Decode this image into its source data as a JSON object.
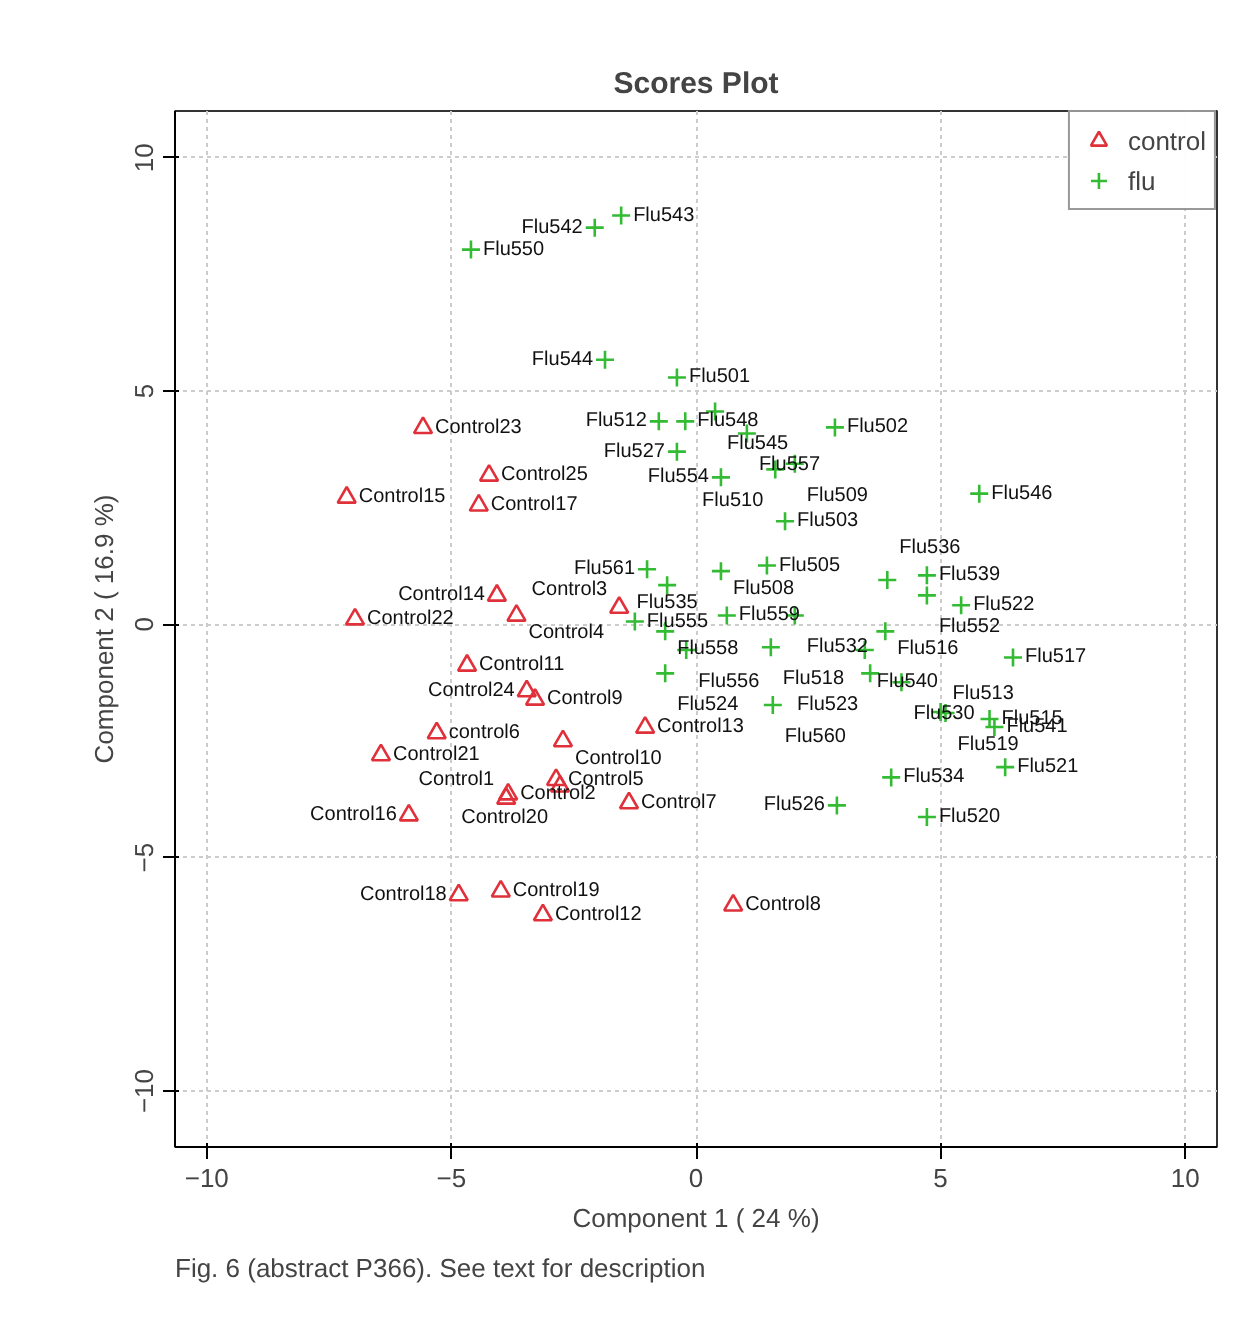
{
  "chart_data": {
    "type": "scatter",
    "title": "Scores Plot",
    "xlabel": "Component 1 ( 24 %)",
    "ylabel": "Component 2 ( 16.9 %)",
    "xlim": [
      -10.65,
      10.65
    ],
    "ylim": [
      -11.2,
      11
    ],
    "xticks": [
      -10,
      -5,
      0,
      5,
      10
    ],
    "yticks": [
      -10,
      -5,
      0,
      5,
      10
    ],
    "grid": true,
    "legend": "top right",
    "series": [
      {
        "name": "control",
        "color": "#e0303a",
        "marker": "triangle",
        "x": [
          -5.58,
          -4.23,
          -7.14,
          -4.44,
          -4.07,
          -6.97,
          -3.67,
          -1.57,
          -4.68,
          -3.46,
          -3.29,
          -5.3,
          -6.44,
          -2.72,
          -1.04,
          -5.87,
          -2.86,
          -2.78,
          -3.88,
          -3.84,
          -1.37,
          -3.99,
          -4.85,
          -3.13,
          0.76
        ],
        "values": [
          4.21,
          3.19,
          2.72,
          2.55,
          0.62,
          0.11,
          0.19,
          0.36,
          -0.88,
          -1.43,
          -1.61,
          -2.33,
          -2.8,
          -2.5,
          -2.21,
          -4.09,
          -3.33,
          -3.47,
          -3.73,
          -3.64,
          -3.83,
          -5.72,
          -5.8,
          -6.23,
          -6.02
        ]
      },
      {
        "name": "flu",
        "color": "#33bb33",
        "marker": "cross",
        "x": [
          -4.6,
          -2.07,
          -1.53,
          -1.86,
          -0.39,
          -0.76,
          -0.22,
          0.39,
          1.04,
          2.84,
          -0.39,
          0.51,
          2.02,
          1.62,
          5.79,
          1.82,
          1.45,
          -1.0,
          0.51,
          -0.59,
          3.91,
          4.72,
          4.72,
          5.42,
          0.63,
          2.02,
          -0.63,
          -1.25,
          3.87,
          -0.2,
          1.53,
          3.45,
          3.56,
          4.2,
          -0.63,
          6.48,
          1.57,
          5.0,
          5.1,
          6.0,
          6.1,
          3.99,
          6.32,
          2.88,
          4.72
        ],
        "values": [
          8.03,
          8.5,
          8.76,
          5.67,
          5.29,
          4.35,
          4.35,
          4.56,
          4.09,
          4.22,
          3.7,
          3.15,
          3.44,
          3.32,
          2.8,
          2.21,
          1.26,
          1.18,
          1.14,
          0.84,
          0.95,
          1.05,
          0.62,
          0.41,
          0.19,
          0.19,
          -0.15,
          0.06,
          -0.15,
          -0.55,
          -0.49,
          -0.55,
          -1.05,
          -1.24,
          -1.05,
          -0.71,
          -1.73,
          -1.88,
          -1.9,
          -2.03,
          -2.2,
          -3.28,
          -3.06,
          -3.88,
          -4.13
        ]
      }
    ],
    "annotations": [
      {
        "text": "Control23",
        "x": -5.58,
        "y": 4.21
      },
      {
        "text": "Control25",
        "x": -4.23,
        "y": 3.19
      },
      {
        "text": "Control15",
        "x": -7.14,
        "y": 2.72
      },
      {
        "text": "Control17",
        "x": -4.44,
        "y": 2.55
      },
      {
        "text": "Control14",
        "x": -4.07,
        "y": 0.62
      },
      {
        "text": "Control22",
        "x": -6.97,
        "y": 0.11
      },
      {
        "text": "Control4",
        "x": -3.67,
        "y": 0.19
      },
      {
        "text": "Control3",
        "x": -1.57,
        "y": 0.36
      },
      {
        "text": "Control11",
        "x": -4.68,
        "y": -0.88
      },
      {
        "text": "Control24",
        "x": -3.46,
        "y": -1.43
      },
      {
        "text": "Control9",
        "x": -3.29,
        "y": -1.61
      },
      {
        "text": "control6",
        "x": -5.3,
        "y": -2.33
      },
      {
        "text": "Control21",
        "x": -6.44,
        "y": -2.8
      },
      {
        "text": "Control10",
        "x": -2.72,
        "y": -2.5
      },
      {
        "text": "Control13",
        "x": -1.04,
        "y": -2.21
      },
      {
        "text": "Control16",
        "x": -5.87,
        "y": -4.09
      },
      {
        "text": "Control5",
        "x": -2.86,
        "y": -3.33
      },
      {
        "text": "Control20",
        "x": -2.78,
        "y": -3.47
      },
      {
        "text": "Control1",
        "x": -3.88,
        "y": -3.73
      },
      {
        "text": "Control2",
        "x": -3.84,
        "y": -3.64
      },
      {
        "text": "Control7",
        "x": -1.37,
        "y": -3.83
      },
      {
        "text": "Control19",
        "x": -3.99,
        "y": -5.72
      },
      {
        "text": "Control18",
        "x": -4.85,
        "y": -5.8
      },
      {
        "text": "Control12",
        "x": -3.13,
        "y": -6.23
      },
      {
        "text": "Control8",
        "x": 0.76,
        "y": -6.02
      },
      {
        "text": "Flu550",
        "x": -4.6,
        "y": 8.03
      },
      {
        "text": "Flu542",
        "x": -2.07,
        "y": 8.5
      },
      {
        "text": "Flu543",
        "x": -1.53,
        "y": 8.76
      },
      {
        "text": "Flu544",
        "x": -1.86,
        "y": 5.67
      },
      {
        "text": "Flu501",
        "x": -0.39,
        "y": 5.29
      },
      {
        "text": "Flu512",
        "x": -0.76,
        "y": 4.35
      },
      {
        "text": "Flu548",
        "x": -0.22,
        "y": 4.35
      },
      {
        "text": "Flu545",
        "x": 0.39,
        "y": 4.56
      },
      {
        "text": "Flu557",
        "x": 1.04,
        "y": 4.09
      },
      {
        "text": "Flu502",
        "x": 2.84,
        "y": 4.22
      },
      {
        "text": "Flu527",
        "x": -0.39,
        "y": 3.7
      },
      {
        "text": "Flu554",
        "x": 0.51,
        "y": 3.15
      },
      {
        "text": "Flu509",
        "x": 2.02,
        "y": 3.44
      },
      {
        "text": "Flu510",
        "x": 1.62,
        "y": 3.32
      },
      {
        "text": "Flu546",
        "x": 5.79,
        "y": 2.8
      },
      {
        "text": "Flu503",
        "x": 1.82,
        "y": 2.21
      },
      {
        "text": "Flu505",
        "x": 1.45,
        "y": 1.26
      },
      {
        "text": "Flu561",
        "x": -1.0,
        "y": 1.18
      },
      {
        "text": "Flu508",
        "x": 0.51,
        "y": 1.14
      },
      {
        "text": "Flu535",
        "x": -0.59,
        "y": 0.84
      },
      {
        "text": "Flu536",
        "x": 3.91,
        "y": 0.95
      },
      {
        "text": "Flu539",
        "x": 4.72,
        "y": 1.05
      },
      {
        "text": "Flu552",
        "x": 4.72,
        "y": 0.62
      },
      {
        "text": "Flu522",
        "x": 5.42,
        "y": 0.41
      },
      {
        "text": "Flu559",
        "x": 0.63,
        "y": 0.19
      },
      {
        "text": "Flu532",
        "x": 2.02,
        "y": 0.19
      },
      {
        "text": "Flu558",
        "x": -0.63,
        "y": -0.15
      },
      {
        "text": "Flu555",
        "x": -1.25,
        "y": 0.06
      },
      {
        "text": "Flu516",
        "x": 3.87,
        "y": -0.15
      },
      {
        "text": "Flu556",
        "x": -0.2,
        "y": -0.55
      },
      {
        "text": "Flu518",
        "x": 1.53,
        "y": -0.49
      },
      {
        "text": "Flu540",
        "x": 3.45,
        "y": -0.55
      },
      {
        "text": "Flu523",
        "x": 3.56,
        "y": -1.05
      },
      {
        "text": "Flu530",
        "x": 4.2,
        "y": -1.24
      },
      {
        "text": "Flu524",
        "x": -0.63,
        "y": -1.05
      },
      {
        "text": "Flu517",
        "x": 6.48,
        "y": -0.71
      },
      {
        "text": "Flu560",
        "x": 1.57,
        "y": -1.73
      },
      {
        "text": "Flu513",
        "x": 5.0,
        "y": -1.88
      },
      {
        "text": "Flu519",
        "x": 5.1,
        "y": -1.9
      },
      {
        "text": "Flu515",
        "x": 6.0,
        "y": -2.03
      },
      {
        "text": "Flu541",
        "x": 6.1,
        "y": -2.2
      },
      {
        "text": "Flu534",
        "x": 3.99,
        "y": -3.28
      },
      {
        "text": "Flu521",
        "x": 6.32,
        "y": -3.06
      },
      {
        "text": "Flu526",
        "x": 2.88,
        "y": -3.88
      },
      {
        "text": "Flu520",
        "x": 4.72,
        "y": -4.13
      },
      "Fig. 6 (abstract P366). See text for description"
    ]
  }
}
